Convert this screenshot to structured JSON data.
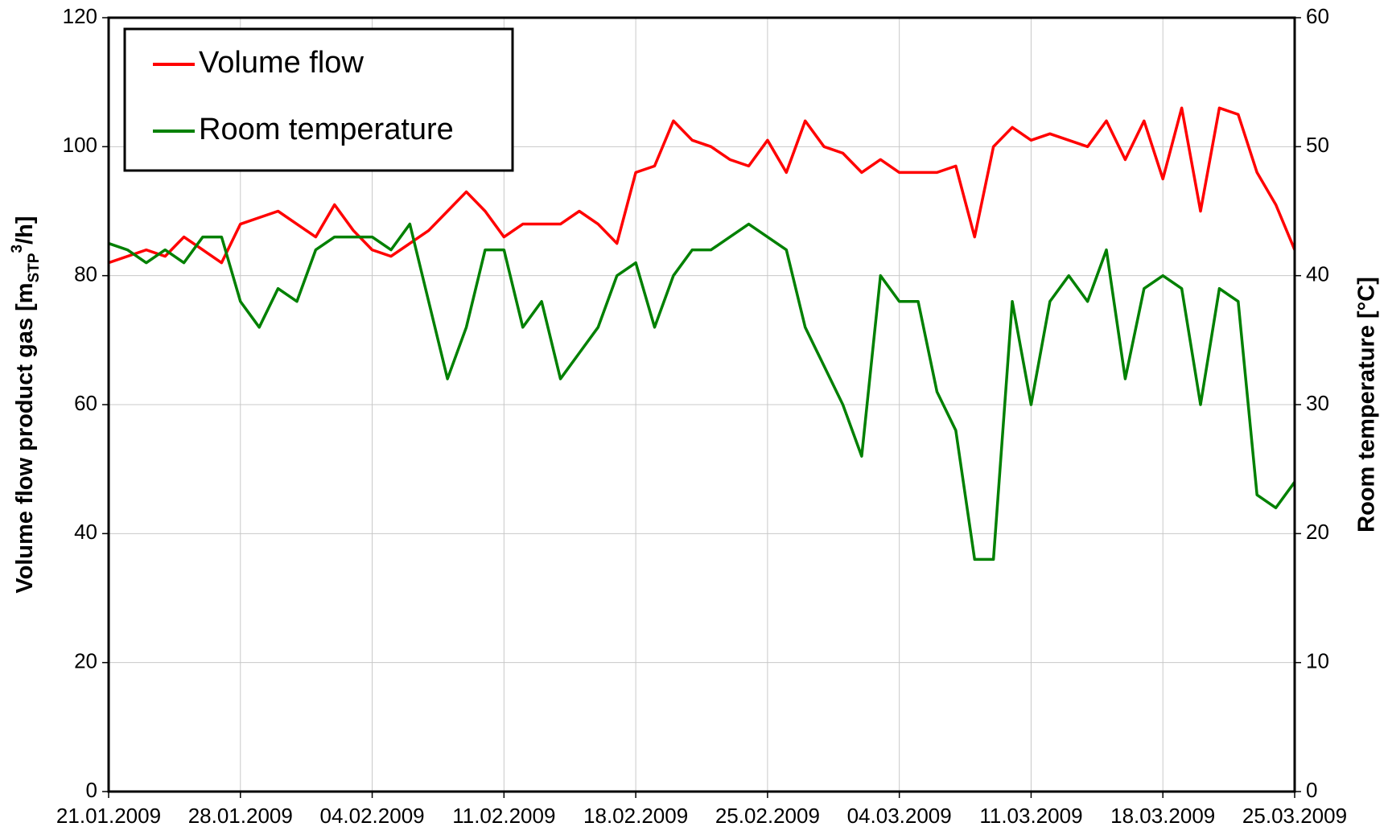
{
  "chart_data": {
    "type": "line",
    "ylabel": [
      "Volume flow product gas [m",
      "STP",
      "3",
      "/h]"
    ],
    "y2label": "Room temperature [°C]",
    "x": [
      "21.01.2009",
      "22.01.2009",
      "23.01.2009",
      "24.01.2009",
      "25.01.2009",
      "26.01.2009",
      "27.01.2009",
      "28.01.2009",
      "29.01.2009",
      "30.01.2009",
      "31.01.2009",
      "01.02.2009",
      "02.02.2009",
      "03.02.2009",
      "04.02.2009",
      "05.02.2009",
      "06.02.2009",
      "07.02.2009",
      "08.02.2009",
      "09.02.2009",
      "10.02.2009",
      "11.02.2009",
      "12.02.2009",
      "13.02.2009",
      "14.02.2009",
      "15.02.2009",
      "16.02.2009",
      "17.02.2009",
      "18.02.2009",
      "19.02.2009",
      "20.02.2009",
      "21.02.2009",
      "22.02.2009",
      "23.02.2009",
      "24.02.2009",
      "25.02.2009",
      "26.02.2009",
      "27.02.2009",
      "28.02.2009",
      "01.03.2009",
      "02.03.2009",
      "03.03.2009",
      "04.03.2009",
      "05.03.2009",
      "06.03.2009",
      "07.03.2009",
      "08.03.2009",
      "09.03.2009",
      "10.03.2009",
      "11.03.2009",
      "12.03.2009",
      "13.03.2009",
      "14.03.2009",
      "15.03.2009",
      "16.03.2009",
      "17.03.2009",
      "18.03.2009",
      "19.03.2009",
      "20.03.2009",
      "21.03.2009",
      "22.03.2009",
      "23.03.2009",
      "24.03.2009",
      "25.03.2009"
    ],
    "series": [
      {
        "name": "Volume flow",
        "color": "#ff0000",
        "values": [
          82,
          83,
          84,
          83,
          86,
          84,
          82,
          88,
          89,
          90,
          88,
          86,
          91,
          87,
          84,
          83,
          85,
          87,
          90,
          93,
          90,
          86,
          88,
          88,
          88,
          90,
          88,
          85,
          96,
          97,
          104,
          101,
          100,
          98,
          97,
          101,
          96,
          104,
          100,
          99,
          96,
          98,
          96,
          96,
          96,
          97,
          86,
          100,
          103,
          101,
          102,
          101,
          100,
          104,
          98,
          104,
          95,
          106,
          90,
          106,
          105,
          96,
          91,
          84
        ]
      },
      {
        "name": "Room temperature",
        "color": "#008000",
        "axis": "y2",
        "values": [
          42.5,
          42,
          41,
          42,
          41,
          43,
          43,
          38,
          36,
          39,
          38,
          42,
          43,
          43,
          43,
          42,
          44,
          38,
          32,
          36,
          42,
          42,
          36,
          38,
          32,
          34,
          36,
          40,
          41,
          36,
          40,
          42,
          42,
          43,
          44,
          43,
          42,
          36,
          33,
          30,
          26,
          40,
          38,
          38,
          31,
          28,
          18,
          18,
          38,
          30,
          38,
          40,
          38,
          42,
          32,
          39,
          40,
          39,
          30,
          39,
          38,
          23,
          22,
          24
        ]
      }
    ],
    "xlim": [
      "21.01.2009",
      "25.03.2009"
    ],
    "xticks": [
      "21.01.2009",
      "28.01.2009",
      "04.02.2009",
      "11.02.2009",
      "18.02.2009",
      "25.02.2009",
      "04.03.2009",
      "11.03.2009",
      "18.03.2009",
      "25.03.2009"
    ],
    "ylim": [
      0,
      120
    ],
    "yticks": [
      0,
      20,
      40,
      60,
      80,
      100,
      120
    ],
    "y2lim": [
      0,
      60
    ],
    "y2ticks": [
      0,
      10,
      20,
      30,
      40,
      50,
      60
    ],
    "grid": true,
    "legend": "upper left"
  }
}
